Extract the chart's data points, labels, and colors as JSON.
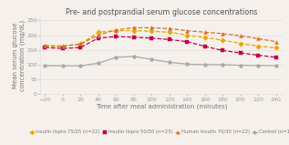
{
  "title": "Pre- and postprandial serum glucose concentrations",
  "xlabel": "Time after meal administration (minutes)",
  "ylabel": "Mean serum glucose\nconcentration (mg/dL)",
  "x": [
    -20,
    0,
    20,
    40,
    60,
    80,
    100,
    120,
    140,
    160,
    180,
    200,
    220,
    240
  ],
  "series": {
    "humalog_75_25": {
      "label": "Insulin lispro 75/25 (n=22)",
      "color": "#e8a800",
      "marker": "D",
      "markersize": 2.8,
      "linewidth": 0.9,
      "linestyle": "--",
      "values": [
        162,
        162,
        170,
        210,
        215,
        215,
        213,
        210,
        200,
        192,
        183,
        172,
        163,
        157
      ]
    },
    "humalog_50_50": {
      "label": "Insulin lispro 50/50 (n=23)",
      "color": "#c0004e",
      "marker": "s",
      "markersize": 2.8,
      "linewidth": 0.9,
      "linestyle": "--",
      "values": [
        158,
        155,
        158,
        190,
        195,
        193,
        190,
        185,
        178,
        162,
        148,
        140,
        132,
        125
      ]
    },
    "human_insulin_70_30": {
      "label": "Human insulin 70/30 (n=22)",
      "color": "#d2722a",
      "marker": "^",
      "markersize": 2.8,
      "linewidth": 0.9,
      "linestyle": "--",
      "values": [
        165,
        163,
        170,
        200,
        218,
        225,
        225,
        222,
        215,
        210,
        205,
        198,
        188,
        178
      ]
    },
    "control": {
      "label": "Control (n=10)",
      "color": "#aaaaaa",
      "marker": "o",
      "markersize": 2.8,
      "linewidth": 0.9,
      "linestyle": "-",
      "values": [
        97,
        96,
        96,
        105,
        125,
        128,
        118,
        108,
        102,
        100,
        100,
        98,
        97,
        97
      ]
    }
  },
  "ylim": [
    0,
    260
  ],
  "yticks": [
    0,
    50,
    100,
    150,
    200,
    250
  ],
  "xlim": [
    -25,
    248
  ],
  "xticks": [
    -20,
    0,
    20,
    40,
    60,
    80,
    100,
    120,
    140,
    160,
    180,
    200,
    220,
    240
  ],
  "bg_color": "#f5f0eb",
  "title_fontsize": 5.8,
  "axis_label_fontsize": 5.0,
  "tick_fontsize": 4.5,
  "legend_fontsize": 3.8
}
